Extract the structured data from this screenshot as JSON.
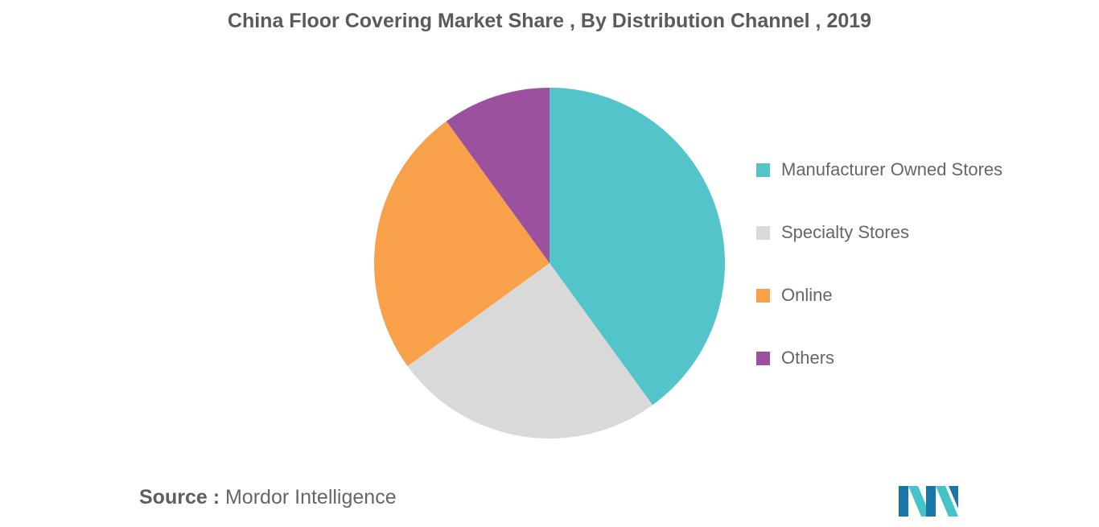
{
  "chart_data": {
    "type": "pie",
    "title": "China Floor Covering Market Share , By Distribution Channel , 2019",
    "slices": [
      {
        "label": "Manufacturer Owned Stores",
        "value": 40,
        "color": "#53c4c9"
      },
      {
        "label": "Specialty Stores",
        "value": 25,
        "color": "#d9d9d9"
      },
      {
        "label": "Online",
        "value": 25,
        "color": "#f9a04a"
      },
      {
        "label": "Others",
        "value": 10,
        "color": "#9b519d"
      }
    ],
    "legend_position": "right"
  },
  "source": {
    "key": "Source :",
    "value": "Mordor Intelligence"
  },
  "logo": {
    "icon": "mordor-intelligence-logo",
    "colors": [
      "#1a75a8",
      "#45c3c9"
    ]
  }
}
